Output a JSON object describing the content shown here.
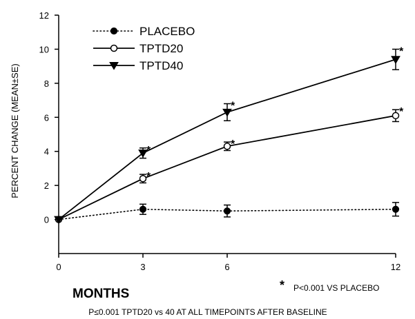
{
  "chart_data": {
    "type": "line",
    "ylabel": "PERCENT CHANGE (MEAN±SE)",
    "xlabel": "MONTHS",
    "x": [
      0,
      3,
      6,
      12
    ],
    "x_tick_labels": [
      "0",
      "3",
      "6",
      "12"
    ],
    "ylim": [
      -2,
      12
    ],
    "y_ticks": [
      0,
      2,
      4,
      6,
      8,
      10,
      12
    ],
    "y_tick_labels": [
      "0",
      "2",
      "4",
      "6",
      "8",
      "10",
      "12"
    ],
    "grid": false,
    "legend_position": "top-left",
    "series": [
      {
        "name": "PLACEBO",
        "line_style": "dotted",
        "marker": "filled-circle",
        "values": [
          0,
          0.6,
          0.5,
          0.6
        ],
        "se": [
          0,
          0.3,
          0.35,
          0.4
        ],
        "significance": [
          "",
          "",
          "",
          ""
        ]
      },
      {
        "name": "TPTD20",
        "line_style": "solid",
        "marker": "open-circle",
        "values": [
          0,
          2.4,
          4.3,
          6.1
        ],
        "se": [
          0,
          0.25,
          0.25,
          0.35
        ],
        "significance": [
          "",
          "*",
          "*",
          "*"
        ]
      },
      {
        "name": "TPTD40",
        "line_style": "solid",
        "marker": "filled-triangle-down",
        "values": [
          0,
          3.9,
          6.3,
          9.4
        ],
        "se": [
          0,
          0.3,
          0.5,
          0.6
        ],
        "significance": [
          "",
          "*",
          "*",
          "*"
        ]
      }
    ],
    "footnote_star": "*",
    "footnote_text": "P<0.001 VS PLACEBO",
    "footnote_2": "P≤0.001 TPTD20 vs 40 AT ALL TIMEPOINTS AFTER BASELINE"
  }
}
